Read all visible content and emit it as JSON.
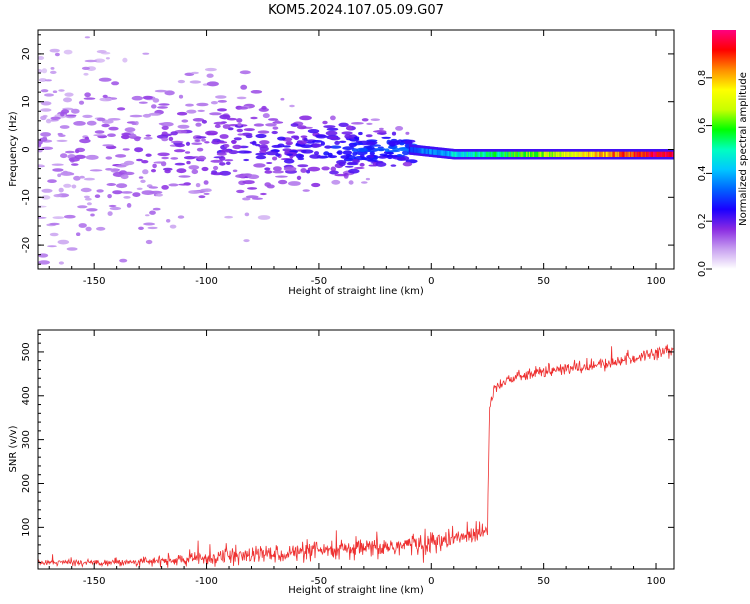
{
  "page": {
    "title": "KOM5.2024.107.05.09.G07"
  },
  "chart_data": [
    {
      "type": "heatmap",
      "xlabel": "Height of straight line (km)",
      "ylabel": "Frequency (Hz)",
      "xlim": [
        -175,
        108
      ],
      "ylim": [
        -25,
        25
      ],
      "xticks": [
        -150,
        -100,
        -50,
        0,
        50,
        100
      ],
      "yticks": [
        -20,
        -10,
        0,
        10,
        20
      ],
      "colorbar": {
        "label": "Normalized spectral amplitude",
        "range": [
          0,
          1
        ],
        "ticks": [
          0.0,
          0.2,
          0.4,
          0.6,
          0.8
        ],
        "colormap": [
          "#ffffff",
          "#c8a0f0",
          "#8a2be2",
          "#1a00ff",
          "#0064ff",
          "#00c8ff",
          "#00ffc0",
          "#00ff00",
          "#c8ff00",
          "#ffff00",
          "#ff8c00",
          "#ff0000",
          "#ff0080"
        ]
      },
      "signal": {
        "description_points": [
          {
            "x": -170,
            "freq_center": 0,
            "freq_spread": 22,
            "amplitude": 0.1
          },
          {
            "x": -110,
            "freq_center": 0,
            "freq_spread": 12,
            "amplitude": 0.15
          },
          {
            "x": -60,
            "freq_center": 0,
            "freq_spread": 6,
            "amplitude": 0.2
          },
          {
            "x": -10,
            "freq_center": 0,
            "freq_spread": 2,
            "amplitude": 0.3
          },
          {
            "x": 10,
            "freq_center": -1,
            "freq_spread": 1,
            "amplitude": 0.45
          },
          {
            "x": 50,
            "freq_center": -1,
            "freq_spread": 0.7,
            "amplitude": 0.65
          },
          {
            "x": 100,
            "freq_center": -1,
            "freq_spread": 0.7,
            "amplitude": 0.95
          }
        ]
      }
    },
    {
      "type": "line",
      "xlabel": "Height of straight line (km)",
      "ylabel": "SNR (v/v)",
      "xlim": [
        -175,
        108
      ],
      "ylim": [
        5,
        550
      ],
      "xticks": [
        -150,
        -100,
        -50,
        0,
        50,
        100
      ],
      "yticks": [
        100,
        200,
        300,
        400,
        500
      ],
      "series": [
        {
          "color": "#ee3030",
          "x": [
            -175,
            -150,
            -125,
            -110,
            -100,
            -75,
            -50,
            -25,
            -10,
            0,
            10,
            20,
            25,
            26,
            27,
            28,
            35,
            50,
            75,
            90,
            100,
            108
          ],
          "y": [
            20,
            20,
            22,
            26,
            30,
            38,
            45,
            52,
            60,
            65,
            72,
            88,
            100,
            380,
            400,
            420,
            438,
            455,
            470,
            485,
            500,
            505
          ],
          "noise": [
            6,
            6,
            8,
            12,
            15,
            18,
            18,
            20,
            22,
            22,
            22,
            20,
            20,
            15,
            12,
            10,
            10,
            12,
            12,
            12,
            12,
            12
          ]
        }
      ]
    }
  ]
}
